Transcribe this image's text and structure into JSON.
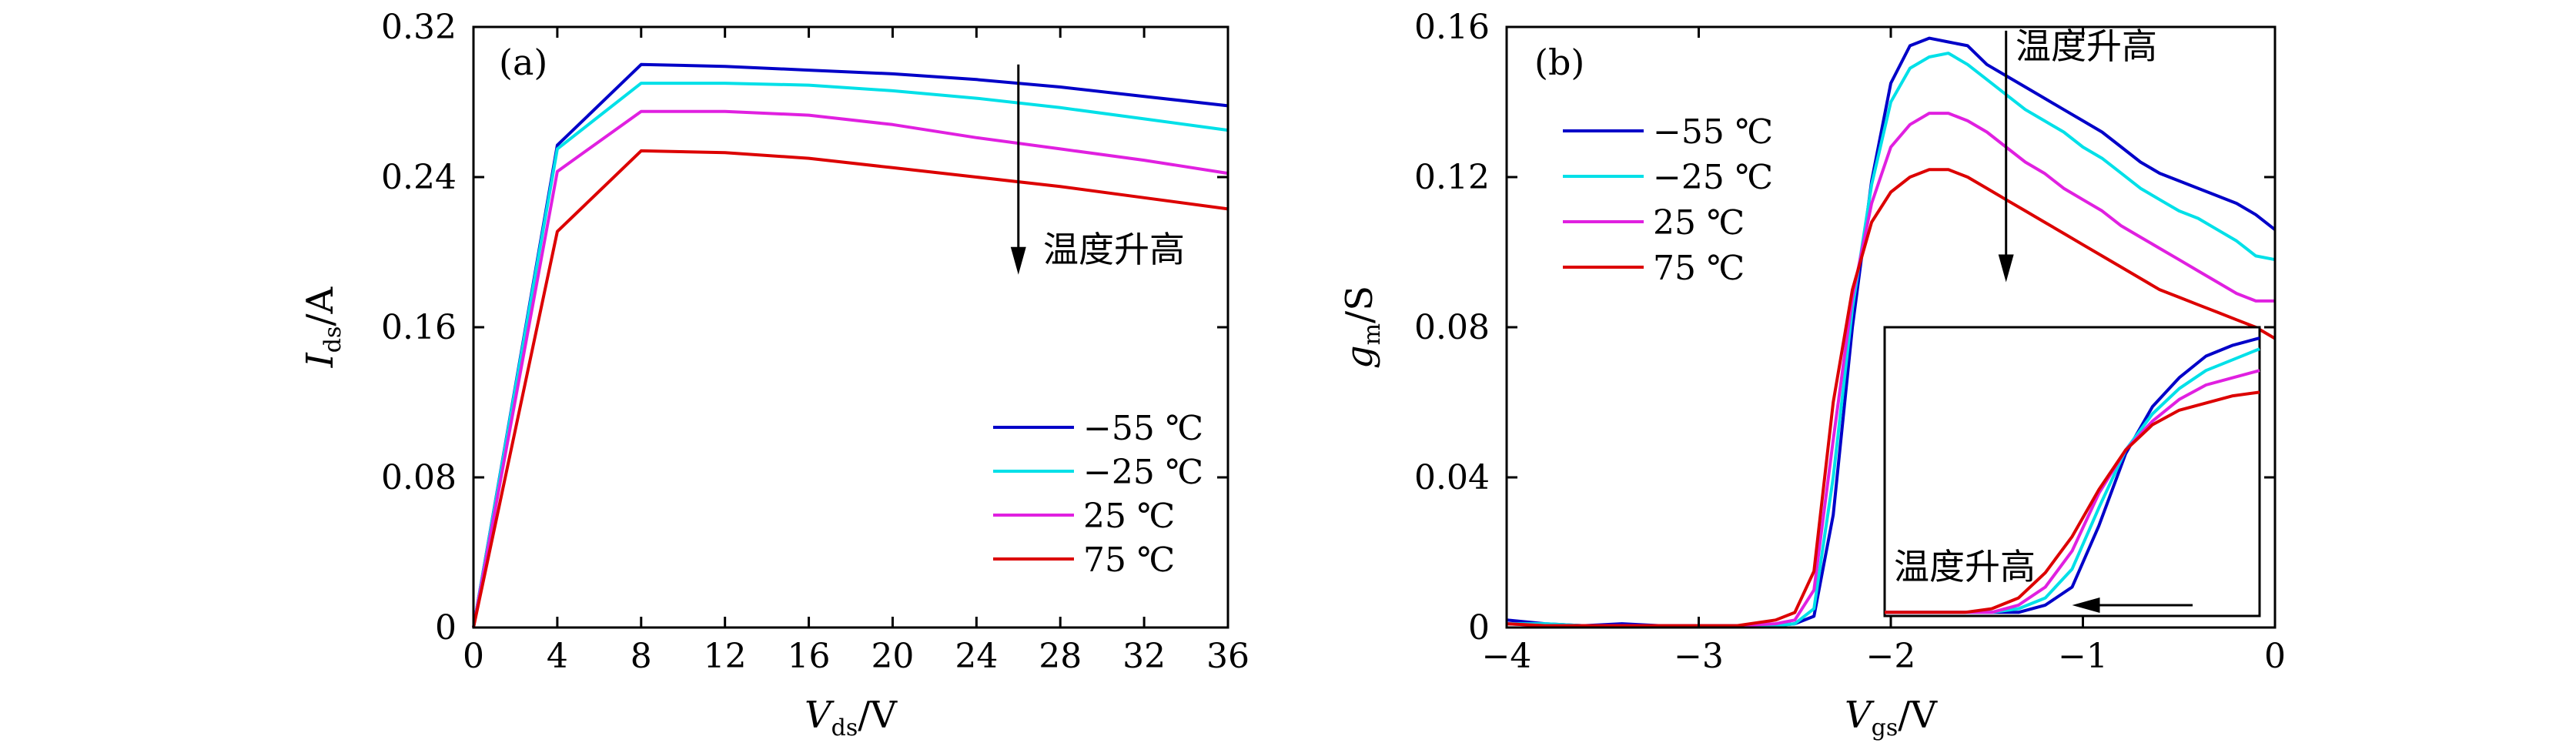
{
  "chart_data": [
    {
      "type": "line",
      "panel_label": "(a)",
      "ylabel_main": "I",
      "ylabel_sub": "ds",
      "ylabel_unit": "/A",
      "xlabel_main": "V",
      "xlabel_sub": "ds",
      "xlabel_unit": "/V",
      "xlim": [
        0,
        36
      ],
      "ylim": [
        0,
        0.32
      ],
      "xticks": [
        0,
        4,
        8,
        12,
        16,
        20,
        24,
        28,
        32,
        36
      ],
      "xtick_labels": [
        "0",
        "4",
        "8",
        "12",
        "16",
        "20",
        "24",
        "28",
        "32",
        "36"
      ],
      "yticks": [
        0,
        0.08,
        0.16,
        0.24,
        0.32
      ],
      "ytick_labels": [
        "0",
        "0.08",
        "0.16",
        "0.24",
        "0.32"
      ],
      "grid": false,
      "legend_position": "lower-right",
      "annotation": "温度升高",
      "arrow": {
        "x": 26,
        "y_from": 0.3,
        "y_to": 0.188
      },
      "series": [
        {
          "name": "−55 ℃",
          "color": "#0000c8",
          "x": [
            0,
            4,
            8,
            12,
            16,
            20,
            24,
            28,
            32,
            36
          ],
          "y": [
            0,
            0.257,
            0.3,
            0.299,
            0.297,
            0.295,
            0.292,
            0.288,
            0.283,
            0.278
          ]
        },
        {
          "name": "−25 ℃",
          "color": "#00e0e8",
          "x": [
            0,
            4,
            8,
            12,
            16,
            20,
            24,
            28,
            32,
            36
          ],
          "y": [
            0,
            0.255,
            0.29,
            0.29,
            0.289,
            0.286,
            0.282,
            0.277,
            0.271,
            0.265
          ]
        },
        {
          "name": "25 ℃",
          "color": "#e020e0",
          "x": [
            0,
            4,
            8,
            12,
            16,
            20,
            24,
            28,
            32,
            36
          ],
          "y": [
            0,
            0.243,
            0.275,
            0.275,
            0.273,
            0.268,
            0.261,
            0.255,
            0.249,
            0.242
          ]
        },
        {
          "name": "75 ℃",
          "color": "#dc0000",
          "x": [
            0,
            4,
            8,
            12,
            16,
            20,
            24,
            28,
            32,
            36
          ],
          "y": [
            0,
            0.211,
            0.254,
            0.253,
            0.25,
            0.245,
            0.24,
            0.235,
            0.229,
            0.223
          ]
        }
      ]
    },
    {
      "type": "line",
      "panel_label": "(b)",
      "ylabel_main": "g",
      "ylabel_sub": "m",
      "ylabel_unit": "/S",
      "xlabel_main": "V",
      "xlabel_sub": "gs",
      "xlabel_unit": "/V",
      "xlim": [
        -4,
        0
      ],
      "ylim": [
        0,
        0.16
      ],
      "xticks": [
        -4,
        -3,
        -2,
        -1,
        0
      ],
      "xtick_labels": [
        "−4",
        "−3",
        "−2",
        "−1",
        "0"
      ],
      "yticks": [
        0,
        0.04,
        0.08,
        0.12,
        0.16
      ],
      "ytick_labels": [
        "0",
        "0.04",
        "0.08",
        "0.12",
        "0.16"
      ],
      "grid": false,
      "legend_position": "upper-left",
      "annotation": "温度升高",
      "arrow": {
        "x": -1.4,
        "y_from": 0.159,
        "y_to": 0.092
      },
      "series": [
        {
          "name": "−55 ℃",
          "color": "#0000c8",
          "x": [
            -4.0,
            -3.8,
            -3.6,
            -3.4,
            -3.2,
            -3.0,
            -2.8,
            -2.6,
            -2.5,
            -2.4,
            -2.3,
            -2.2,
            -2.1,
            -2.0,
            -1.9,
            -1.8,
            -1.7,
            -1.6,
            -1.5,
            -1.4,
            -1.3,
            -1.2,
            -1.1,
            -1.0,
            -0.9,
            -0.8,
            -0.7,
            -0.6,
            -0.5,
            -0.4,
            -0.3,
            -0.2,
            -0.1,
            0.0
          ],
          "y": [
            0.002,
            0.001,
            0.0005,
            0.001,
            0.0005,
            0.0005,
            0.0005,
            0.0005,
            0.001,
            0.003,
            0.03,
            0.08,
            0.119,
            0.145,
            0.155,
            0.157,
            0.156,
            0.155,
            0.15,
            0.147,
            0.144,
            0.141,
            0.138,
            0.135,
            0.132,
            0.128,
            0.124,
            0.121,
            0.119,
            0.117,
            0.115,
            0.113,
            0.11,
            0.106
          ]
        },
        {
          "name": "−25 ℃",
          "color": "#00e0e8",
          "x": [
            -4.0,
            -3.8,
            -3.6,
            -3.4,
            -3.2,
            -3.0,
            -2.8,
            -2.6,
            -2.5,
            -2.4,
            -2.3,
            -2.2,
            -2.1,
            -2.0,
            -1.9,
            -1.8,
            -1.7,
            -1.6,
            -1.5,
            -1.4,
            -1.3,
            -1.2,
            -1.1,
            -1.0,
            -0.9,
            -0.8,
            -0.7,
            -0.6,
            -0.5,
            -0.4,
            -0.3,
            -0.2,
            -0.1,
            0.0
          ],
          "y": [
            0.001,
            0.001,
            0.0005,
            0.0005,
            0.0005,
            0.0005,
            0.0005,
            0.0005,
            0.001,
            0.005,
            0.04,
            0.085,
            0.118,
            0.14,
            0.149,
            0.152,
            0.153,
            0.15,
            0.146,
            0.142,
            0.138,
            0.135,
            0.132,
            0.128,
            0.125,
            0.121,
            0.117,
            0.114,
            0.111,
            0.109,
            0.106,
            0.103,
            0.099,
            0.098
          ]
        },
        {
          "name": "25 ℃",
          "color": "#e020e0",
          "x": [
            -4.0,
            -3.8,
            -3.6,
            -3.4,
            -3.2,
            -3.0,
            -2.8,
            -2.6,
            -2.5,
            -2.4,
            -2.3,
            -2.2,
            -2.1,
            -2.0,
            -1.9,
            -1.8,
            -1.7,
            -1.6,
            -1.5,
            -1.4,
            -1.3,
            -1.2,
            -1.1,
            -1.0,
            -0.9,
            -0.8,
            -0.7,
            -0.6,
            -0.5,
            -0.4,
            -0.3,
            -0.2,
            -0.1,
            0.0
          ],
          "y": [
            0.001,
            0.0005,
            0.0005,
            0.0005,
            0.0005,
            0.0005,
            0.0005,
            0.001,
            0.002,
            0.01,
            0.05,
            0.088,
            0.113,
            0.128,
            0.134,
            0.137,
            0.137,
            0.135,
            0.132,
            0.128,
            0.124,
            0.121,
            0.117,
            0.114,
            0.111,
            0.107,
            0.104,
            0.101,
            0.098,
            0.095,
            0.092,
            0.089,
            0.087,
            0.087
          ]
        },
        {
          "name": "75 ℃",
          "color": "#dc0000",
          "x": [
            -4.0,
            -3.8,
            -3.6,
            -3.4,
            -3.2,
            -3.0,
            -2.8,
            -2.6,
            -2.5,
            -2.4,
            -2.3,
            -2.2,
            -2.1,
            -2.0,
            -1.9,
            -1.8,
            -1.7,
            -1.6,
            -1.5,
            -1.4,
            -1.3,
            -1.2,
            -1.1,
            -1.0,
            -0.9,
            -0.8,
            -0.7,
            -0.6,
            -0.5,
            -0.4,
            -0.3,
            -0.2,
            -0.1,
            0.0
          ],
          "y": [
            0.001,
            0.0005,
            0.0005,
            0.0005,
            0.0005,
            0.0005,
            0.0005,
            0.002,
            0.004,
            0.015,
            0.06,
            0.09,
            0.108,
            0.116,
            0.12,
            0.122,
            0.122,
            0.12,
            0.117,
            0.114,
            0.111,
            0.108,
            0.105,
            0.102,
            0.099,
            0.096,
            0.093,
            0.09,
            0.088,
            0.086,
            0.084,
            0.082,
            0.08,
            0.077
          ]
        }
      ],
      "inset": {
        "annotation": "温度升高",
        "xlim": [
          -2.7,
          -1.3
        ],
        "ylim": [
          0,
          0.08
        ],
        "arrow": {
          "x_from": -1.55,
          "x_to": -2.0,
          "y": 0.003
        },
        "series": [
          {
            "name": "−55 ℃",
            "color": "#0000c8",
            "x": [
              -2.7,
              -2.6,
              -2.5,
              -2.4,
              -2.3,
              -2.2,
              -2.1,
              -2.0,
              -1.9,
              -1.8,
              -1.7,
              -1.6,
              -1.5,
              -1.4,
              -1.3
            ],
            "y": [
              0.001,
              0.001,
              0.001,
              0.001,
              0.001,
              0.001,
              0.003,
              0.008,
              0.025,
              0.045,
              0.058,
              0.066,
              0.072,
              0.075,
              0.077
            ]
          },
          {
            "name": "−25 ℃",
            "color": "#00e0e8",
            "x": [
              -2.7,
              -2.6,
              -2.5,
              -2.4,
              -2.3,
              -2.2,
              -2.1,
              -2.0,
              -1.9,
              -1.8,
              -1.7,
              -1.6,
              -1.5,
              -1.4,
              -1.3
            ],
            "y": [
              0.001,
              0.001,
              0.001,
              0.001,
              0.001,
              0.002,
              0.005,
              0.013,
              0.03,
              0.046,
              0.056,
              0.063,
              0.068,
              0.071,
              0.074
            ]
          },
          {
            "name": "25 ℃",
            "color": "#e020e0",
            "x": [
              -2.7,
              -2.6,
              -2.5,
              -2.4,
              -2.3,
              -2.2,
              -2.1,
              -2.0,
              -1.9,
              -1.8,
              -1.7,
              -1.6,
              -1.5,
              -1.4,
              -1.3
            ],
            "y": [
              0.001,
              0.001,
              0.001,
              0.001,
              0.001,
              0.003,
              0.008,
              0.018,
              0.034,
              0.046,
              0.054,
              0.06,
              0.064,
              0.066,
              0.068
            ]
          },
          {
            "name": "75 ℃",
            "color": "#dc0000",
            "x": [
              -2.7,
              -2.6,
              -2.5,
              -2.4,
              -2.3,
              -2.2,
              -2.1,
              -2.0,
              -1.9,
              -1.8,
              -1.7,
              -1.6,
              -1.5,
              -1.4,
              -1.3
            ],
            "y": [
              0.001,
              0.001,
              0.001,
              0.001,
              0.002,
              0.005,
              0.012,
              0.022,
              0.035,
              0.046,
              0.053,
              0.057,
              0.059,
              0.061,
              0.062
            ]
          }
        ]
      }
    }
  ]
}
